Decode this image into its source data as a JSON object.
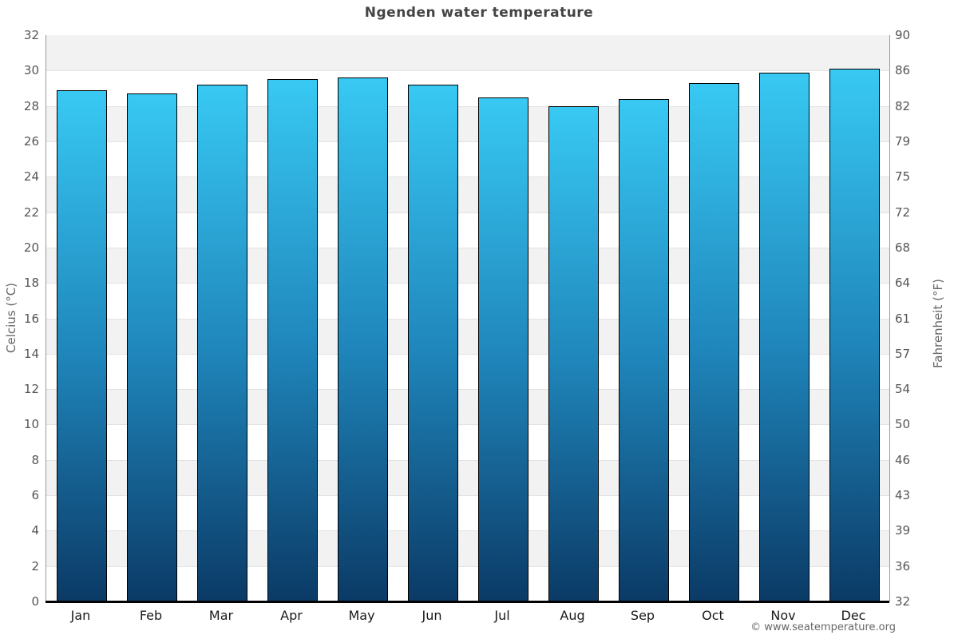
{
  "chart_data": {
    "type": "bar",
    "title": "Ngenden water temperature",
    "categories": [
      "Jan",
      "Feb",
      "Mar",
      "Apr",
      "May",
      "Jun",
      "Jul",
      "Aug",
      "Sep",
      "Oct",
      "Nov",
      "Dec"
    ],
    "values": [
      28.9,
      28.7,
      29.2,
      29.5,
      29.6,
      29.2,
      28.5,
      28.0,
      28.4,
      29.3,
      29.9,
      30.1
    ],
    "ylabel_left": "Celcius (°C)",
    "ylabel_right": "Fahrenheit (°F)",
    "ylim_left": [
      0,
      32
    ],
    "yticks_left": [
      32,
      30,
      28,
      26,
      24,
      22,
      20,
      18,
      16,
      14,
      12,
      10,
      8,
      6,
      4,
      2,
      0
    ],
    "yticks_right_labels": [
      "90",
      "86",
      "82",
      "79",
      "75",
      "72",
      "68",
      "64",
      "61",
      "57",
      "54",
      "50",
      "46",
      "43",
      "39",
      "36",
      "32"
    ],
    "grid": "horizontal alternating bands every 2°C",
    "legend": "none"
  },
  "footer": {
    "credit": "© www.seatemperature.org"
  },
  "colors": {
    "bar_gradient_top": "#38c9f3",
    "bar_gradient_mid": "#1f85ba",
    "bar_gradient_bottom": "#0b3a66",
    "bar_border": "#000000",
    "band_gray": "#f2f2f2",
    "band_white": "#ffffff",
    "gridline": "#e2e2e2",
    "axis_line": "#999999",
    "baseline": "#000000",
    "title_text": "#444444",
    "tick_text": "#555555",
    "month_text": "#1a1a1a",
    "footer_text": "#666666"
  }
}
